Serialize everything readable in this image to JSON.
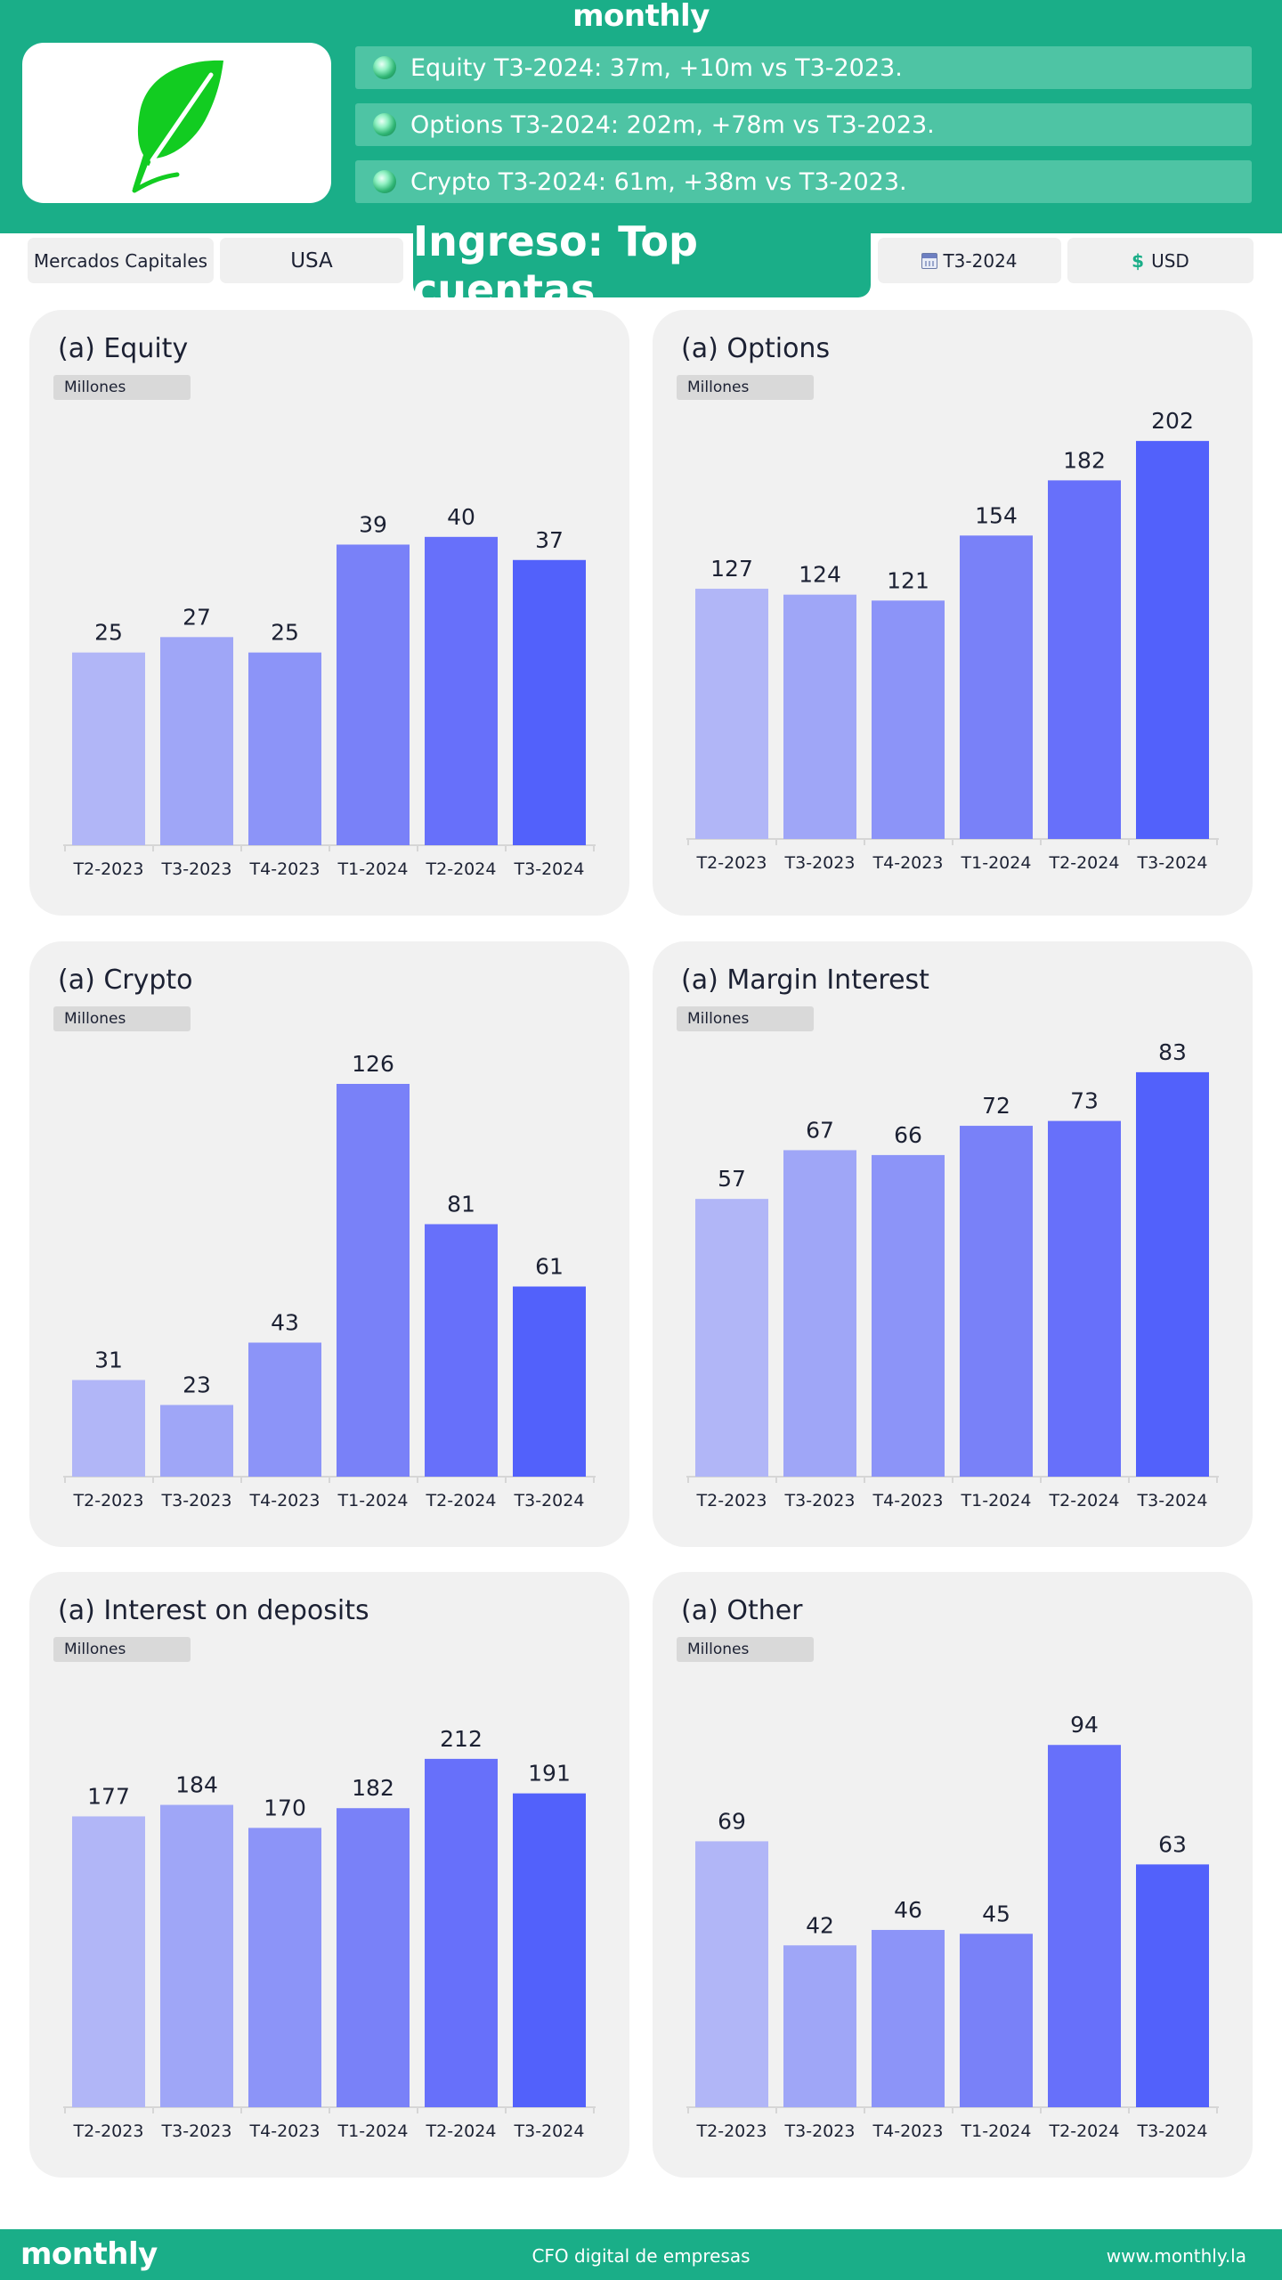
{
  "brand": {
    "name": "monthly"
  },
  "highlights": [
    "Equity T3-2024: 37m, +10m vs T3-2023.",
    "Options T3-2024: 202m, +78m vs T3-2023.",
    "Crypto T3-2024: 61m, +38m vs T3-2023."
  ],
  "filters": {
    "market": "Mercados Capitales",
    "country": "USA",
    "period": "T3-2024",
    "currency": "USD"
  },
  "page_title": "Ingreso: Top cuentas",
  "colors": {
    "brand_green": "#1aae88",
    "bar_colors": [
      "#b1b6f7",
      "#9fa6f7",
      "#8c94f8",
      "#7981f8",
      "#6770fa",
      "#5261fb"
    ]
  },
  "chart_data": [
    {
      "type": "bar",
      "title": "(a) Equity",
      "unit": "Millones",
      "categories": [
        "T2-2023",
        "T3-2023",
        "T4-2023",
        "T1-2024",
        "T2-2024",
        "T3-2024"
      ],
      "values": [
        25,
        27,
        25,
        39,
        40,
        37
      ],
      "ylim": [
        0,
        55
      ]
    },
    {
      "type": "bar",
      "title": "(a) Options",
      "unit": "Millones",
      "categories": [
        "T2-2023",
        "T3-2023",
        "T4-2023",
        "T1-2024",
        "T2-2024",
        "T3-2024"
      ],
      "values": [
        127,
        124,
        121,
        154,
        182,
        202
      ],
      "ylim": [
        0,
        212
      ]
    },
    {
      "type": "bar",
      "title": "(a) Crypto",
      "unit": "Millones",
      "categories": [
        "T2-2023",
        "T3-2023",
        "T4-2023",
        "T1-2024",
        "T2-2024",
        "T3-2024"
      ],
      "values": [
        31,
        23,
        43,
        126,
        81,
        61
      ],
      "ylim": [
        0,
        136
      ]
    },
    {
      "type": "bar",
      "title": "(a) Margin Interest",
      "unit": "Millones",
      "categories": [
        "T2-2023",
        "T3-2023",
        "T4-2023",
        "T1-2024",
        "T2-2024",
        "T3-2024"
      ],
      "values": [
        57,
        67,
        66,
        72,
        73,
        83
      ],
      "ylim": [
        0,
        87
      ]
    },
    {
      "type": "bar",
      "title": "(a) Interest on deposits",
      "unit": "Millones",
      "categories": [
        "T2-2023",
        "T3-2023",
        "T4-2023",
        "T1-2024",
        "T2-2024",
        "T3-2024"
      ],
      "values": [
        177,
        184,
        170,
        182,
        212,
        191
      ],
      "ylim": [
        0,
        258
      ]
    },
    {
      "type": "bar",
      "title": "(a) Other",
      "unit": "Millones",
      "categories": [
        "T2-2023",
        "T3-2023",
        "T4-2023",
        "T1-2024",
        "T2-2024",
        "T3-2024"
      ],
      "values": [
        69,
        42,
        46,
        45,
        94,
        63
      ],
      "ylim": [
        0,
        110
      ]
    }
  ],
  "footer": {
    "brand": "monthly",
    "tagline": "CFO digital de empresas",
    "url": "www.monthly.la"
  }
}
